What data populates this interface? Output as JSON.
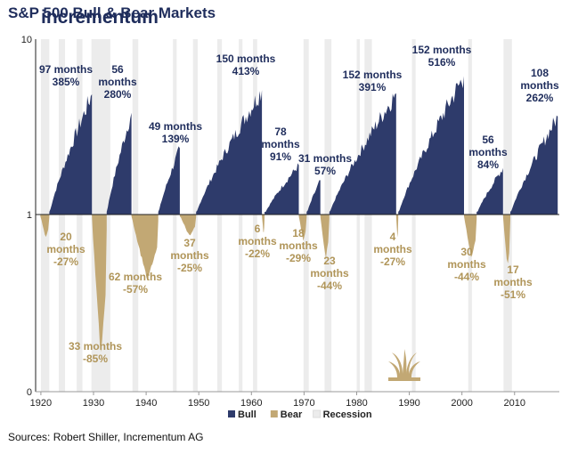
{
  "title": "S&P 500 Bull & Bear Markets",
  "source": "Sources: Robert Shiller, Incrementum AG",
  "logo_text": "incrementum",
  "colors": {
    "bull": "#2e3b6b",
    "bear": "#c2a874",
    "recession": "#ececec",
    "bull_label": "#1f2d5c",
    "bear_label": "#b09559",
    "title": "#1f2d5c"
  },
  "chart_data": {
    "type": "area",
    "yscale": "log",
    "ylim": [
      0,
      10
    ],
    "y_ticks": [
      {
        "value": 10,
        "label": "10"
      },
      {
        "value": 1,
        "label": "1"
      },
      {
        "value": 0,
        "label": "0"
      }
    ],
    "xlim": [
      1919,
      2018.5
    ],
    "x_ticks": [
      1920,
      1930,
      1940,
      1950,
      1960,
      1970,
      1980,
      1990,
      2000,
      2010
    ],
    "legend": {
      "position": "bottom",
      "items": [
        {
          "name": "Bull",
          "color_key": "bull"
        },
        {
          "name": "Bear",
          "color_key": "bear"
        },
        {
          "name": "Recession",
          "color_key": "recession"
        }
      ]
    },
    "recessions": [
      [
        1920.0,
        1921.6
      ],
      [
        1923.4,
        1924.6
      ],
      [
        1926.8,
        1927.9
      ],
      [
        1929.6,
        1933.2
      ],
      [
        1937.4,
        1938.5
      ],
      [
        1945.1,
        1945.8
      ],
      [
        1948.9,
        1949.8
      ],
      [
        1953.5,
        1954.4
      ],
      [
        1957.6,
        1958.3
      ],
      [
        1960.3,
        1961.1
      ],
      [
        1969.9,
        1970.9
      ],
      [
        1973.9,
        1975.2
      ],
      [
        1980.0,
        1980.6
      ],
      [
        1981.5,
        1982.9
      ],
      [
        1990.5,
        1991.2
      ],
      [
        2001.2,
        2001.9
      ],
      [
        2007.9,
        2009.5
      ]
    ],
    "bull_markets": [
      {
        "start": 1921.6,
        "end": 1929.7,
        "peak": 4.85,
        "months": 97,
        "gain_pct": 385,
        "label": [
          "97 months",
          "385%"
        ]
      },
      {
        "start": 1932.5,
        "end": 1937.2,
        "peak": 3.8,
        "months": 56,
        "gain_pct": 280,
        "label": [
          "56",
          "months",
          "280%"
        ]
      },
      {
        "start": 1942.3,
        "end": 1946.4,
        "peak": 2.39,
        "months": 49,
        "gain_pct": 139,
        "label": [
          "49 months",
          "139%"
        ]
      },
      {
        "start": 1949.5,
        "end": 1962.0,
        "peak": 5.13,
        "months": 150,
        "gain_pct": 413,
        "label": [
          "150 months",
          "413%"
        ]
      },
      {
        "start": 1962.5,
        "end": 1969.0,
        "peak": 1.91,
        "months": 78,
        "gain_pct": 91,
        "label": [
          "78",
          "months",
          "91%"
        ]
      },
      {
        "start": 1970.5,
        "end": 1973.1,
        "peak": 1.57,
        "months": 31,
        "gain_pct": 57,
        "label": [
          "31 months",
          "57%"
        ]
      },
      {
        "start": 1974.8,
        "end": 1987.5,
        "peak": 4.91,
        "months": 152,
        "gain_pct": 391,
        "label": [
          "152 months",
          "391%"
        ]
      },
      {
        "start": 1987.9,
        "end": 2000.4,
        "peak": 6.16,
        "months": 152,
        "gain_pct": 516,
        "label": [
          "152 months",
          "516%"
        ]
      },
      {
        "start": 2002.8,
        "end": 2007.8,
        "peak": 1.84,
        "months": 56,
        "gain_pct": 84,
        "label": [
          "56",
          "months",
          "84%"
        ]
      },
      {
        "start": 2009.2,
        "end": 2018.2,
        "peak": 3.62,
        "months": 108,
        "gain_pct": 262,
        "label": [
          "108",
          "months",
          "262%"
        ]
      }
    ],
    "bear_markets": [
      {
        "start": 1919.9,
        "end": 1921.6,
        "trough": 0.73,
        "months": 20,
        "loss_pct": -27,
        "label": [
          "20",
          "months",
          "-27%"
        ]
      },
      {
        "start": 1929.7,
        "end": 1932.5,
        "trough": 0.15,
        "months": 33,
        "loss_pct": -85,
        "label": [
          "33 months",
          "-85%"
        ]
      },
      {
        "start": 1937.2,
        "end": 1942.3,
        "trough": 0.43,
        "months": 62,
        "loss_pct": -57,
        "label": [
          "62 months",
          "-57%"
        ]
      },
      {
        "start": 1946.4,
        "end": 1949.5,
        "trough": 0.75,
        "months": 37,
        "loss_pct": -25,
        "label": [
          "37",
          "months",
          "-25%"
        ]
      },
      {
        "start": 1962.0,
        "end": 1962.5,
        "trough": 0.78,
        "months": 6,
        "loss_pct": -22,
        "label": [
          "6",
          "months",
          "-22%"
        ]
      },
      {
        "start": 1969.0,
        "end": 1970.5,
        "trough": 0.71,
        "months": 18,
        "loss_pct": -29,
        "label": [
          "18",
          "months",
          "-29%"
        ]
      },
      {
        "start": 1973.1,
        "end": 1974.8,
        "trough": 0.56,
        "months": 23,
        "loss_pct": -44,
        "label": [
          "23",
          "months",
          "-44%"
        ]
      },
      {
        "start": 1987.5,
        "end": 1987.9,
        "trough": 0.73,
        "months": 4,
        "loss_pct": -27,
        "label": [
          "4",
          "months",
          "-27%"
        ]
      },
      {
        "start": 2000.4,
        "end": 2002.8,
        "trough": 0.56,
        "months": 30,
        "loss_pct": -44,
        "label": [
          "30",
          "months",
          "-44%"
        ]
      },
      {
        "start": 2007.8,
        "end": 2009.2,
        "trough": 0.49,
        "months": 17,
        "loss_pct": -51,
        "label": [
          "17",
          "months",
          "-51%"
        ]
      }
    ]
  }
}
